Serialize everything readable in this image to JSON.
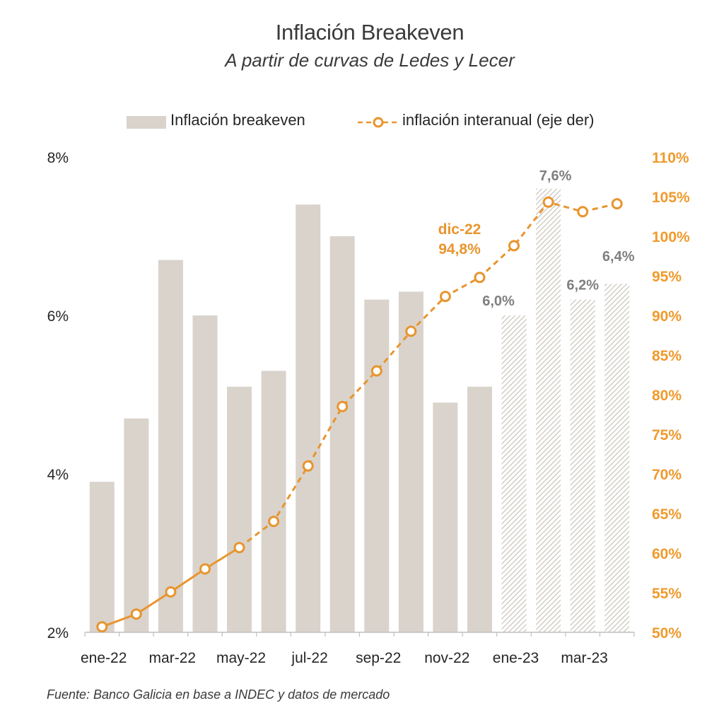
{
  "title": "Inflación Breakeven",
  "subtitle": "A partir de curvas de Ledes y Lecer",
  "legend": {
    "bars_label": "Inflación breakeven",
    "line_label": "inflación interanual (eje der)"
  },
  "source": "Fuente: Banco Galicia en base a INDEC y datos de mercado",
  "colors": {
    "bar": "#d9d3cc",
    "bar_hatch": "#c9c2ba",
    "line": "#e8952e",
    "label_dark": "#7f7f7f",
    "axis_right": "#f09a2c"
  },
  "chart_data": {
    "type": "bar+line",
    "title": "Inflación Breakeven",
    "categories": [
      "ene-22",
      "feb-22",
      "mar-22",
      "abr-22",
      "may-22",
      "jun-22",
      "jul-22",
      "ago-22",
      "sep-22",
      "oct-22",
      "nov-22",
      "dic-22",
      "ene-23",
      "feb-23",
      "mar-23",
      "abr-23"
    ],
    "x_tick_labels": [
      "ene-22",
      "mar-22",
      "may-22",
      "jul-22",
      "sep-22",
      "nov-22",
      "ene-23",
      "mar-23"
    ],
    "series": [
      {
        "name": "Inflación breakeven",
        "type": "bar",
        "axis": "left",
        "values": [
          3.9,
          4.7,
          6.7,
          6.0,
          5.1,
          5.3,
          7.4,
          7.0,
          6.2,
          6.3,
          4.9,
          5.1,
          6.0,
          7.6,
          6.2,
          6.4
        ],
        "hatched_from_index": 12
      },
      {
        "name": "inflación interanual (eje der)",
        "type": "line",
        "axis": "right",
        "values": [
          50.7,
          52.3,
          55.1,
          58.0,
          60.7,
          64.0,
          71.0,
          78.5,
          83.0,
          88.0,
          92.4,
          94.8,
          98.8,
          104.3,
          103.1,
          104.1
        ],
        "solid_until_index": 4
      }
    ],
    "y_left": {
      "min": 2,
      "max": 8,
      "ticks": [
        "2%",
        "4%",
        "6%",
        "8%"
      ]
    },
    "y_right": {
      "min": 50,
      "max": 110,
      "ticks": [
        "50%",
        "55%",
        "60%",
        "65%",
        "70%",
        "75%",
        "80%",
        "85%",
        "90%",
        "95%",
        "100%",
        "105%",
        "110%"
      ]
    },
    "data_labels": [
      {
        "index": 12,
        "text": "6,0%"
      },
      {
        "index": 13,
        "text": "7,6%"
      },
      {
        "index": 14,
        "text": "6,2%"
      },
      {
        "index": 15,
        "text": "6,4%"
      }
    ],
    "annotation": {
      "index": 11,
      "line1": "dic-22",
      "line2": "94,8%"
    }
  }
}
